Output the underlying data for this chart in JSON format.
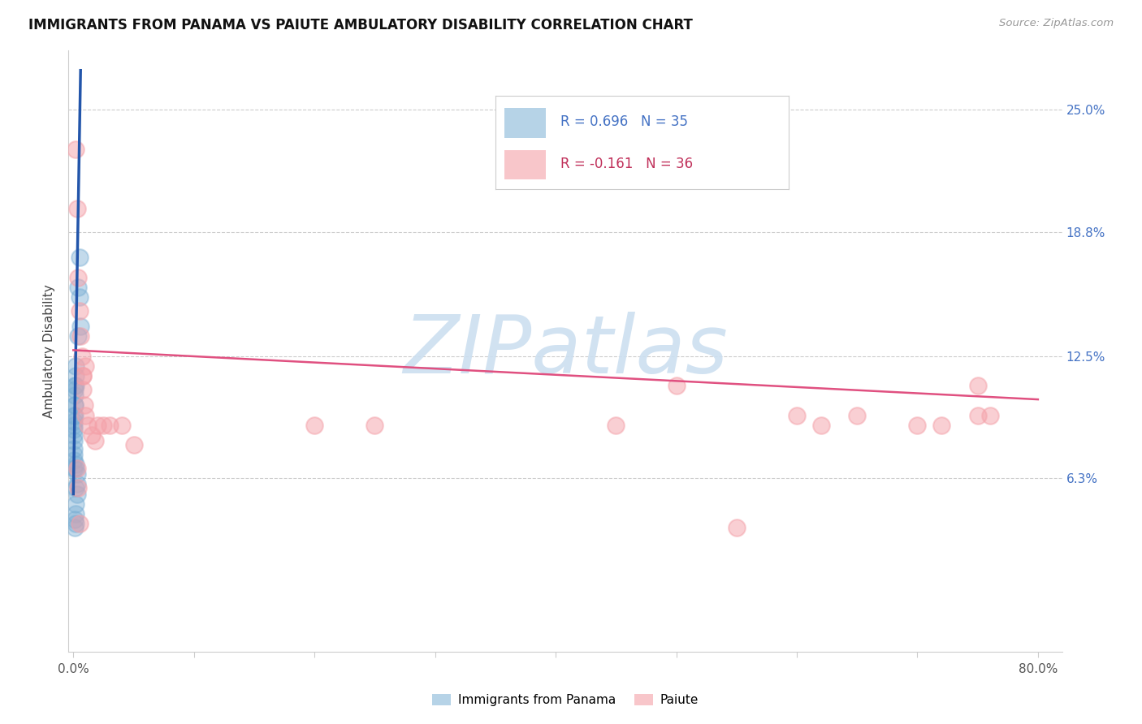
{
  "title": "IMMIGRANTS FROM PANAMA VS PAIUTE AMBULATORY DISABILITY CORRELATION CHART",
  "source": "Source: ZipAtlas.com",
  "ylabel": "Ambulatory Disability",
  "ytick_labels": [
    "6.3%",
    "12.5%",
    "18.8%",
    "25.0%"
  ],
  "ytick_values": [
    0.063,
    0.125,
    0.188,
    0.25
  ],
  "xlim": [
    -0.004,
    0.82
  ],
  "ylim": [
    -0.025,
    0.28
  ],
  "legend1_label": "Immigrants from Panama",
  "legend2_label": "Paiute",
  "r1": "R = 0.696",
  "n1": "N = 35",
  "r2": "R = -0.161",
  "n2": "N = 36",
  "blue_color": "#7bafd4",
  "pink_color": "#f4a0a8",
  "blue_line_color": "#2255aa",
  "pink_line_color": "#e05080",
  "blue_text_color": "#4472c4",
  "pink_text_color": "#c0305a",
  "watermark_color": "#ccdff0",
  "grid_color": "#cccccc",
  "panama_x": [
    0.0005,
    0.0005,
    0.0005,
    0.0005,
    0.0005,
    0.0005,
    0.0005,
    0.0005,
    0.0005,
    0.0005,
    0.001,
    0.001,
    0.001,
    0.001,
    0.001,
    0.001,
    0.0015,
    0.0015,
    0.0015,
    0.002,
    0.002,
    0.002,
    0.002,
    0.003,
    0.003,
    0.003,
    0.004,
    0.004,
    0.005,
    0.005,
    0.006,
    0.001,
    0.001,
    0.002,
    0.002
  ],
  "panama_y": [
    0.068,
    0.072,
    0.075,
    0.078,
    0.082,
    0.085,
    0.088,
    0.09,
    0.092,
    0.095,
    0.095,
    0.1,
    0.1,
    0.105,
    0.108,
    0.11,
    0.11,
    0.115,
    0.12,
    0.04,
    0.045,
    0.05,
    0.058,
    0.055,
    0.06,
    0.065,
    0.135,
    0.16,
    0.155,
    0.175,
    0.14,
    0.038,
    0.042,
    0.068,
    0.07
  ],
  "paiute_x": [
    0.002,
    0.003,
    0.004,
    0.005,
    0.006,
    0.007,
    0.008,
    0.008,
    0.009,
    0.01,
    0.012,
    0.015,
    0.018,
    0.02,
    0.025,
    0.008,
    0.01,
    0.04,
    0.05,
    0.45,
    0.5,
    0.6,
    0.62,
    0.65,
    0.7,
    0.72,
    0.75,
    0.003,
    0.004,
    0.005,
    0.75,
    0.76,
    0.2,
    0.25,
    0.03,
    0.55
  ],
  "paiute_y": [
    0.23,
    0.2,
    0.165,
    0.148,
    0.135,
    0.125,
    0.115,
    0.108,
    0.1,
    0.095,
    0.09,
    0.085,
    0.082,
    0.09,
    0.09,
    0.115,
    0.12,
    0.09,
    0.08,
    0.09,
    0.11,
    0.095,
    0.09,
    0.095,
    0.09,
    0.09,
    0.095,
    0.068,
    0.058,
    0.04,
    0.11,
    0.095,
    0.09,
    0.09,
    0.09,
    0.038
  ],
  "blue_line_x1": 0.0,
  "blue_line_y1": 0.055,
  "blue_line_x2": 0.006,
  "blue_line_y2": 0.27,
  "pink_line_x1": 0.0,
  "pink_line_y1": 0.128,
  "pink_line_x2": 0.8,
  "pink_line_y2": 0.103
}
